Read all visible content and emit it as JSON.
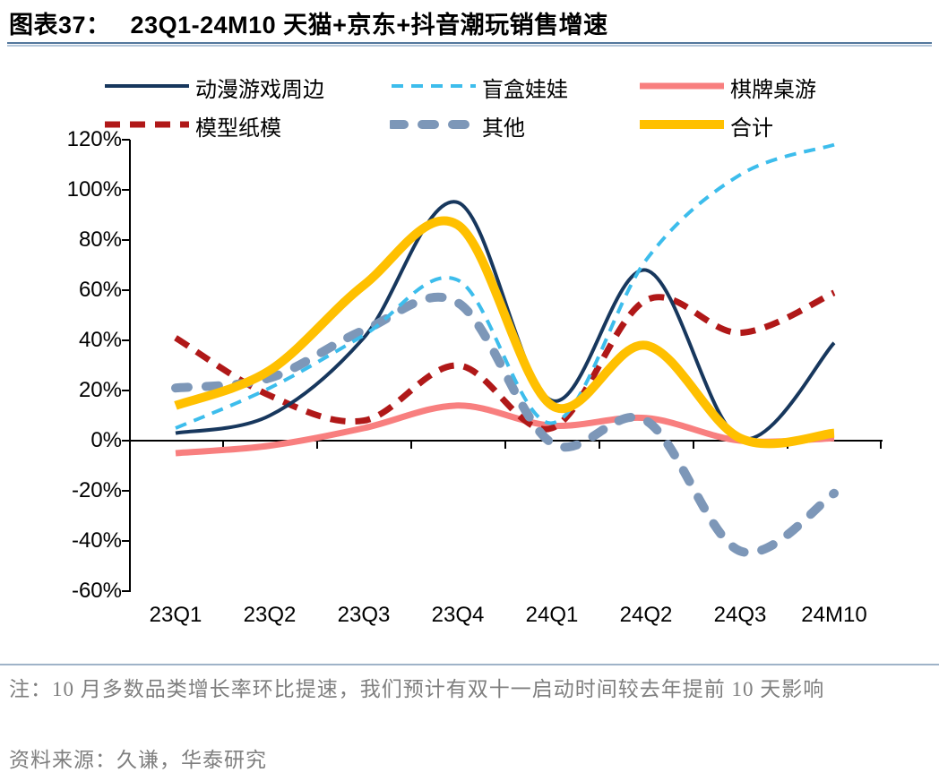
{
  "figure": {
    "label": "图表37：",
    "title": "23Q1-24M10 天猫+京东+抖音潮玩销售增速"
  },
  "chart_data": {
    "type": "line",
    "title": "23Q1-24M10 天猫+京东+抖音潮玩销售增速",
    "categories": [
      "23Q1",
      "23Q2",
      "23Q3",
      "23Q4",
      "24Q1",
      "24Q2",
      "24Q3",
      "24M10"
    ],
    "unit": "%",
    "ylim": [
      -60,
      120
    ],
    "ytick_step": 20,
    "yticks": [
      "120%",
      "100%",
      "80%",
      "60%",
      "40%",
      "20%",
      "0%",
      "-20%",
      "-40%",
      "-60%"
    ],
    "grid": false,
    "legend_position": "top",
    "line_smoothing": true,
    "series": [
      {
        "key": "anime-game-peripherals",
        "name": "动漫游戏周边",
        "color": "#17375D",
        "style": "solid",
        "width": 4,
        "values": [
          3,
          10,
          41,
          95,
          16,
          68,
          1,
          39
        ]
      },
      {
        "key": "blind-box-dolls",
        "name": "盲盒娃娃",
        "color": "#3DBDEC",
        "style": "dashed",
        "width": 4,
        "dash": [
          13,
          9
        ],
        "values": [
          5,
          21,
          42,
          64,
          7,
          72,
          106,
          118
        ]
      },
      {
        "key": "board-games",
        "name": "棋牌桌游",
        "color": "#F87F7F",
        "style": "solid",
        "width": 7,
        "values": [
          -5,
          -2,
          5,
          14,
          6,
          9,
          0,
          1
        ]
      },
      {
        "key": "model-paper",
        "name": "模型纸模",
        "color": "#B01818",
        "style": "dashed",
        "width": 7,
        "dash": [
          17,
          11
        ],
        "values": [
          41,
          18,
          8,
          30,
          5,
          56,
          43,
          59
        ]
      },
      {
        "key": "others",
        "name": "其他",
        "color": "#7D97B8",
        "style": "dashed",
        "width": 10,
        "dash": [
          14,
          20
        ],
        "cap": "round",
        "values": [
          21,
          25,
          44,
          55,
          -1,
          8,
          -44,
          -21
        ]
      },
      {
        "key": "total",
        "name": "合计",
        "color": "#FFC000",
        "style": "solid",
        "width": 10,
        "values": [
          14,
          28,
          62,
          86,
          14,
          38,
          1,
          3
        ]
      }
    ]
  },
  "notes": {
    "note": "注：10 月多数品类增长率环比提速，我们预计有双十一启动时间较去年提前 10 天影响",
    "source": "资料来源：久谦，华泰研究"
  }
}
